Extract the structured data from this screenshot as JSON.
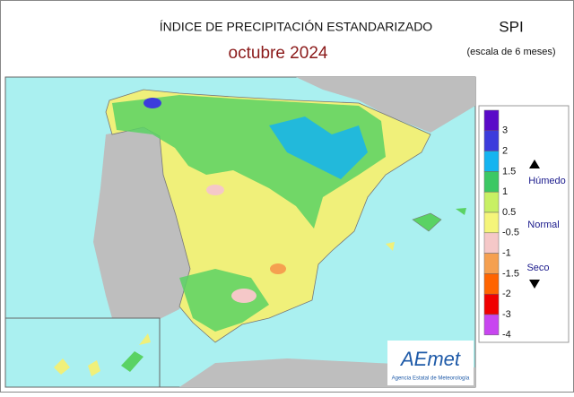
{
  "header": {
    "title": "ÍNDICE DE PRECIPITACIÓN ESTANDARIZADO",
    "subtitle": "octubre  2024",
    "index": "SPI",
    "scale": "(escala de 6 meses)"
  },
  "legend": {
    "ticks": [
      3,
      2,
      1.5,
      1,
      0.5,
      -0.5,
      -1,
      -1.5,
      -2,
      -3,
      -4
    ],
    "colors": [
      "#5a0ac8",
      "#3c3cdc",
      "#14b4f0",
      "#3cc864",
      "#c8f064",
      "#f5f57a",
      "#f5c8c8",
      "#f5a050",
      "#ff6400",
      "#f00000",
      "#c846f0"
    ],
    "wet": "Húmedo",
    "normal": "Normal",
    "dry": "Seco"
  },
  "logo": {
    "name": "AEmet",
    "agency": "Agencia Estatal de Meteorología"
  }
}
